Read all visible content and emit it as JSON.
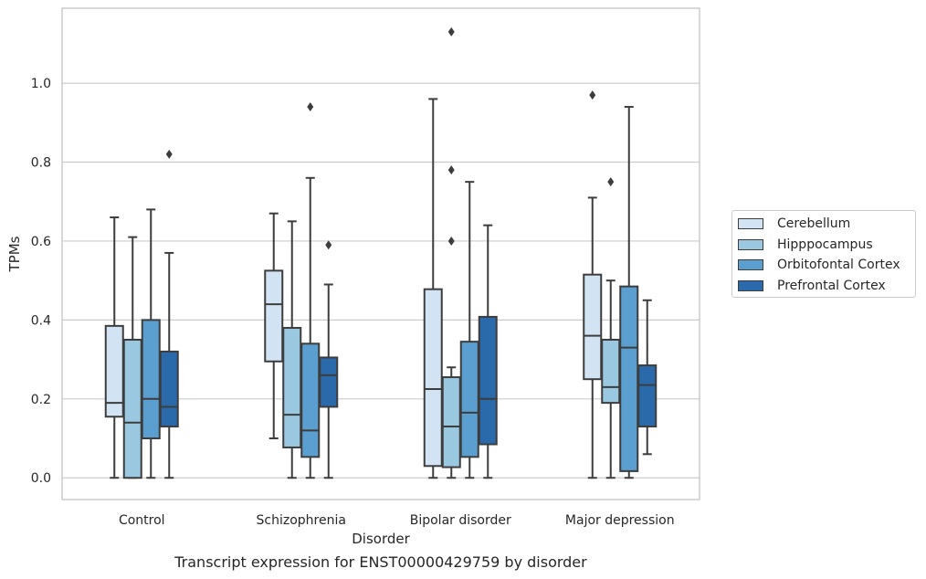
{
  "chart_data": {
    "type": "box",
    "title": "",
    "xlabel": "Disorder",
    "ylabel": "TPMs",
    "caption": "Transcript expression for ENST00000429759 by disorder",
    "categories": [
      "Control",
      "Schizophrenia",
      "Bipolar disorder",
      "Major depression"
    ],
    "ylim": [
      -0.055,
      1.19
    ],
    "yticks": [
      "0.0",
      "0.2",
      "0.4",
      "0.6",
      "0.8",
      "1.0"
    ],
    "grid": "horizontal",
    "legend_position": "right",
    "series": [
      {
        "name": "Cerebellum",
        "color": "#d2e3f3",
        "boxes": [
          {
            "whisker_low": 0.0,
            "q1": 0.155,
            "median": 0.19,
            "q3": 0.385,
            "whisker_high": 0.66,
            "outliers": []
          },
          {
            "whisker_low": 0.1,
            "q1": 0.295,
            "median": 0.44,
            "q3": 0.525,
            "whisker_high": 0.67,
            "outliers": []
          },
          {
            "whisker_low": 0.0,
            "q1": 0.03,
            "median": 0.225,
            "q3": 0.478,
            "whisker_high": 0.96,
            "outliers": []
          },
          {
            "whisker_low": 0.0,
            "q1": 0.25,
            "median": 0.36,
            "q3": 0.515,
            "whisker_high": 0.71,
            "outliers": [
              0.97
            ]
          }
        ]
      },
      {
        "name": "Hipppocampus",
        "color": "#9ac8e0",
        "boxes": [
          {
            "whisker_low": 0.0,
            "q1": 0.0,
            "median": 0.14,
            "q3": 0.35,
            "whisker_high": 0.61,
            "outliers": []
          },
          {
            "whisker_low": 0.0,
            "q1": 0.077,
            "median": 0.16,
            "q3": 0.38,
            "whisker_high": 0.65,
            "outliers": []
          },
          {
            "whisker_low": 0.0,
            "q1": 0.027,
            "median": 0.13,
            "q3": 0.255,
            "whisker_high": 0.28,
            "outliers": [
              0.6,
              0.78,
              1.13
            ]
          },
          {
            "whisker_low": 0.0,
            "q1": 0.19,
            "median": 0.23,
            "q3": 0.35,
            "whisker_high": 0.5,
            "outliers": [
              0.75
            ]
          }
        ]
      },
      {
        "name": "Orbitofontal Cortex",
        "color": "#5a9fcf",
        "boxes": [
          {
            "whisker_low": 0.0,
            "q1": 0.1,
            "median": 0.2,
            "q3": 0.4,
            "whisker_high": 0.68,
            "outliers": []
          },
          {
            "whisker_low": 0.0,
            "q1": 0.053,
            "median": 0.12,
            "q3": 0.34,
            "whisker_high": 0.76,
            "outliers": [
              0.94
            ]
          },
          {
            "whisker_low": 0.0,
            "q1": 0.053,
            "median": 0.165,
            "q3": 0.345,
            "whisker_high": 0.75,
            "outliers": []
          },
          {
            "whisker_low": 0.0,
            "q1": 0.017,
            "median": 0.33,
            "q3": 0.485,
            "whisker_high": 0.94,
            "outliers": []
          }
        ]
      },
      {
        "name": "Prefrontal Cortex",
        "color": "#2a6aab",
        "boxes": [
          {
            "whisker_low": 0.0,
            "q1": 0.13,
            "median": 0.18,
            "q3": 0.32,
            "whisker_high": 0.57,
            "outliers": [
              0.82
            ]
          },
          {
            "whisker_low": 0.0,
            "q1": 0.18,
            "median": 0.26,
            "q3": 0.305,
            "whisker_high": 0.49,
            "outliers": [
              0.59
            ]
          },
          {
            "whisker_low": 0.0,
            "q1": 0.085,
            "median": 0.2,
            "q3": 0.408,
            "whisker_high": 0.64,
            "outliers": []
          },
          {
            "whisker_low": 0.06,
            "q1": 0.13,
            "median": 0.235,
            "q3": 0.285,
            "whisker_high": 0.45,
            "outliers": []
          }
        ]
      }
    ]
  }
}
